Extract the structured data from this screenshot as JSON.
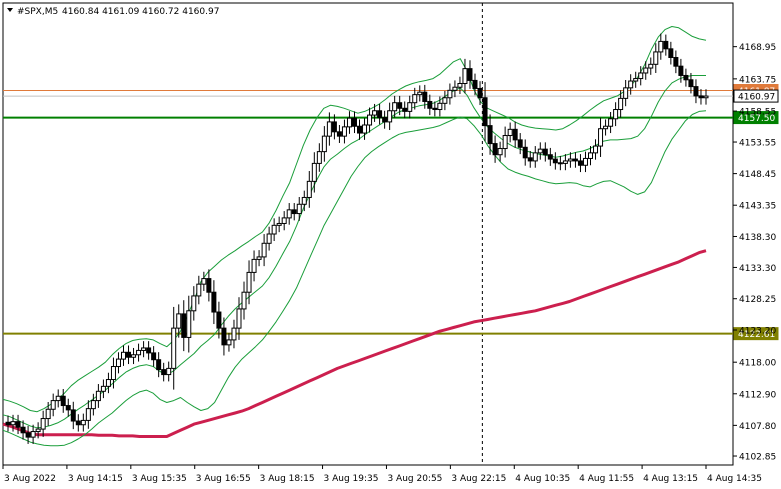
{
  "header": {
    "symbol": "#SPX,M5",
    "ohlc": "4160.84 4161.09 4160.72 4160.97"
  },
  "chart_data": {
    "type": "candlestick",
    "title": "#SPX,M5",
    "ylim": [
      4101.4,
      4176.0
    ],
    "y_ticks": [
      "4168.95",
      "4163.75",
      "4158.55",
      "4153.55",
      "4148.45",
      "4143.35",
      "4138.30",
      "4133.30",
      "4128.25",
      "4123.20",
      "4118.00",
      "4112.90",
      "4107.80",
      "4102.85"
    ],
    "x_ticks": [
      "3 Aug 2022",
      "3 Aug 14:15",
      "3 Aug 15:35",
      "3 Aug 16:55",
      "3 Aug 18:15",
      "3 Aug 19:35",
      "3 Aug 20:55",
      "3 Aug 22:15",
      "4 Aug 10:35",
      "4 Aug 11:55",
      "4 Aug 13:15",
      "4 Aug 14:35"
    ],
    "session_separator_at": "3 Aug 22:15",
    "levels": [
      {
        "value": 4161.87,
        "label": "4161.87",
        "color": "#e07a3a",
        "role": "ask"
      },
      {
        "value": 4160.97,
        "label": "4160.97",
        "color": "#c0c0c0",
        "role": "bid"
      },
      {
        "value": 4157.5,
        "label": "4157.50",
        "color": "#008000",
        "role": "horizontal-line"
      },
      {
        "value": 4122.61,
        "label": "4122.61",
        "color": "#808000",
        "role": "horizontal-line"
      }
    ],
    "close": [
      4107.9,
      4108.4,
      4107.5,
      4106.6,
      4105.9,
      4106.8,
      4107.2,
      4108.9,
      4110.4,
      4111.8,
      4112.5,
      4111.0,
      4110.3,
      4108.5,
      4107.9,
      4108.6,
      4110.5,
      4111.8,
      4113.3,
      4114.1,
      4115.2,
      4117.3,
      4118.5,
      4119.6,
      4118.8,
      4119.2,
      4119.9,
      4120.3,
      4119.5,
      4118.4,
      4116.8,
      4116.0,
      4117.0,
      4123.5,
      4125.8,
      4122.0,
      4126.3,
      4128.7,
      4130.6,
      4131.5,
      4129.3,
      4126.1,
      4123.5,
      4120.8,
      4121.6,
      4123.5,
      4126.6,
      4129.3,
      4132.5,
      4134.6,
      4135.0,
      4137.2,
      4138.7,
      4140.1,
      4140.4,
      4141.3,
      4142.6,
      4142.0,
      4143.5,
      4144.6,
      4147.2,
      4150.1,
      4152.0,
      4154.5,
      4156.8,
      4155.2,
      4154.5,
      4156.0,
      4157.4,
      4156.1,
      4155.0,
      4156.3,
      4157.9,
      4158.6,
      4157.5,
      4156.8,
      4158.6,
      4159.9,
      4159.0,
      4158.5,
      4159.9,
      4161.2,
      4161.6,
      4160.1,
      4159.0,
      4158.8,
      4159.8,
      4160.7,
      4161.9,
      4162.4,
      4163.0,
      4165.4,
      4163.5,
      4162.2,
      4160.7,
      4156.2,
      4153.3,
      4151.5,
      4152.5,
      4154.6,
      4155.6,
      4153.9,
      4152.7,
      4151.0,
      4150.5,
      4151.8,
      4152.4,
      4151.5,
      4150.8,
      4150.2,
      4150.1,
      4150.5,
      4150.8,
      4150.5,
      4149.8,
      4150.9,
      4151.8,
      4152.9,
      4155.7,
      4156.1,
      4157.3,
      4158.8,
      4160.6,
      4162.3,
      4163.4,
      4163.8,
      4164.7,
      4165.5,
      4166.1,
      4168.1,
      4169.8,
      4168.6,
      4167.2,
      4165.8,
      4164.3,
      4163.6,
      4162.5,
      4161.0,
      4160.7,
      4160.97
    ],
    "indicators": [
      {
        "name": "Moving Average",
        "color": "#cc1f4e",
        "values": [
          4108.0,
          4107.7,
          4107.3,
          4106.9,
          4106.5,
          4106.3,
          4106.3,
          4106.3,
          4106.3,
          4106.3,
          4106.3,
          4106.3,
          4106.3,
          4106.3,
          4106.2,
          4106.2,
          4106.2,
          4106.1,
          4106.1,
          4106.1,
          4106.0,
          4106.0,
          4106.0,
          4106.0,
          4106.0,
          4106.5,
          4107.0,
          4107.5,
          4108.0,
          4108.3,
          4108.6,
          4108.9,
          4109.2,
          4109.5,
          4109.8,
          4110.1,
          4110.5,
          4111.0,
          4111.5,
          4112.0,
          4112.5,
          4113.0,
          4113.5,
          4114.0,
          4114.5,
          4115.0,
          4115.5,
          4116.0,
          4116.5,
          4117.0,
          4117.4,
          4117.8,
          4118.2,
          4118.6,
          4119.0,
          4119.4,
          4119.8,
          4120.2,
          4120.6,
          4121.0,
          4121.4,
          4121.8,
          4122.2,
          4122.6,
          4123.0,
          4123.3,
          4123.6,
          4123.9,
          4124.2,
          4124.5,
          4124.7,
          4124.9,
          4125.1,
          4125.3,
          4125.5,
          4125.7,
          4125.9,
          4126.1,
          4126.3,
          4126.6,
          4126.9,
          4127.2,
          4127.5,
          4127.8,
          4128.2,
          4128.6,
          4129.0,
          4129.4,
          4129.8,
          4130.2,
          4130.6,
          4131.0,
          4131.4,
          4131.8,
          4132.2,
          4132.6,
          4133.0,
          4133.4,
          4133.8,
          4134.2,
          4134.7,
          4135.2,
          4135.7,
          4136.0
        ]
      },
      {
        "name": "Bollinger Upper",
        "color": "#1a9e3a",
        "values": [
          4112.0,
          4111.7,
          4111.3,
          4110.8,
          4110.2,
          4110.0,
          4110.5,
          4111.2,
          4112.0,
          4113.0,
          4114.2,
          4115.1,
          4115.8,
          4116.5,
          4117.2,
          4118.0,
          4119.2,
          4120.2,
          4121.0,
          4121.5,
          4121.7,
          4121.8,
          4121.6,
          4121.0,
          4120.5,
          4121.5,
          4123.0,
          4125.5,
          4128.0,
          4131.0,
          4132.5,
          4133.5,
          4134.5,
          4135.3,
          4136.0,
          4136.8,
          4137.5,
          4138.3,
          4139.0,
          4140.5,
          4142.5,
          4144.8,
          4147.0,
          4150.0,
          4153.0,
          4155.5,
          4157.5,
          4159.0,
          4159.5,
          4159.3,
          4159.0,
          4158.6,
          4158.2,
          4158.5,
          4159.0,
          4159.6,
          4160.4,
          4161.3,
          4162.0,
          4162.6,
          4163.0,
          4163.3,
          4163.5,
          4163.8,
          4164.5,
          4165.5,
          4166.5,
          4167.0,
          4165.0,
          4162.0,
          4160.0,
          4159.0,
          4158.5,
          4158.0,
          4157.5,
          4156.8,
          4156.3,
          4156.0,
          4155.8,
          4155.7,
          4155.6,
          4155.5,
          4155.7,
          4156.3,
          4157.0,
          4157.8,
          4158.7,
          4159.5,
          4160.2,
          4160.6,
          4161.0,
          4161.7,
          4162.6,
          4164.0,
          4166.0,
          4168.5,
          4170.5,
          4171.7,
          4172.2,
          4172.0,
          4171.3,
          4170.6,
          4170.2,
          4170.0
        ]
      },
      {
        "name": "Bollinger Lower",
        "color": "#1a9e3a",
        "values": [
          4107.0,
          4106.6,
          4106.1,
          4105.6,
          4105.1,
          4104.8,
          4104.6,
          4104.5,
          4104.5,
          4104.6,
          4105.0,
          4105.6,
          4106.3,
          4107.2,
          4108.2,
          4109.0,
          4109.8,
          4110.8,
          4111.8,
          4112.6,
          4113.2,
          4113.5,
          4113.0,
          4112.0,
          4111.5,
          4111.8,
          4112.3,
          4111.5,
          4110.8,
          4110.2,
          4110.5,
          4111.5,
          4113.5,
          4115.5,
          4117.2,
          4118.5,
          4119.5,
          4120.5,
          4121.6,
          4123.0,
          4124.5,
          4126.2,
          4128.0,
          4130.0,
          4132.5,
          4135.0,
          4137.5,
          4140.0,
          4142.0,
          4144.0,
          4146.0,
          4148.0,
          4149.6,
          4151.0,
          4152.0,
          4152.8,
          4153.5,
          4154.2,
          4154.8,
          4155.1,
          4155.3,
          4155.5,
          4155.7,
          4155.9,
          4156.2,
          4156.7,
          4157.2,
          4157.6,
          4157.3,
          4156.2,
          4154.8,
          4153.0,
          4151.5,
          4150.2,
          4149.2,
          4148.7,
          4148.3,
          4148.0,
          4147.6,
          4147.3,
          4147.0,
          4146.8,
          4146.9,
          4147.0,
          4146.9,
          4146.5,
          4146.3,
          4146.8,
          4147.2,
          4147.3,
          4146.8,
          4146.3,
          4145.6,
          4145.1,
          4145.5,
          4147.0,
          4149.5,
          4152.0,
          4154.0,
          4155.5,
          4157.0,
          4158.0,
          4158.5,
          4158.6
        ]
      },
      {
        "name": "Bollinger Middle",
        "color": "#1a9e3a",
        "values": [
          4109.5,
          4109.2,
          4108.7,
          4108.2,
          4107.7,
          4107.4,
          4107.5,
          4107.8,
          4108.2,
          4108.8,
          4109.6,
          4110.4,
          4111.1,
          4111.9,
          4112.7,
          4113.5,
          4114.5,
          4115.5,
          4116.4,
          4117.0,
          4117.4,
          4117.6,
          4117.3,
          4116.5,
          4116.0,
          4116.6,
          4117.6,
          4118.5,
          4119.4,
          4120.6,
          4121.5,
          4122.5,
          4124.0,
          4125.4,
          4126.6,
          4127.6,
          4128.5,
          4129.4,
          4130.3,
          4131.7,
          4133.5,
          4135.5,
          4137.5,
          4140.0,
          4142.8,
          4145.2,
          4147.5,
          4149.5,
          4150.8,
          4151.6,
          4152.5,
          4153.3,
          4153.9,
          4154.7,
          4155.5,
          4156.2,
          4156.9,
          4157.7,
          4158.4,
          4158.8,
          4159.1,
          4159.4,
          4159.6,
          4159.8,
          4160.3,
          4161.1,
          4161.8,
          4162.3,
          4161.1,
          4159.1,
          4157.4,
          4156.0,
          4155.0,
          4154.1,
          4153.3,
          4152.7,
          4152.3,
          4152.0,
          4151.7,
          4151.5,
          4151.3,
          4151.1,
          4151.3,
          4151.6,
          4151.9,
          4152.1,
          4152.5,
          4153.1,
          4153.7,
          4153.9,
          4153.9,
          4154.0,
          4154.1,
          4154.5,
          4155.7,
          4157.7,
          4160.0,
          4161.8,
          4163.1,
          4163.7,
          4164.1,
          4164.3,
          4164.3,
          4164.3
        ]
      }
    ]
  }
}
